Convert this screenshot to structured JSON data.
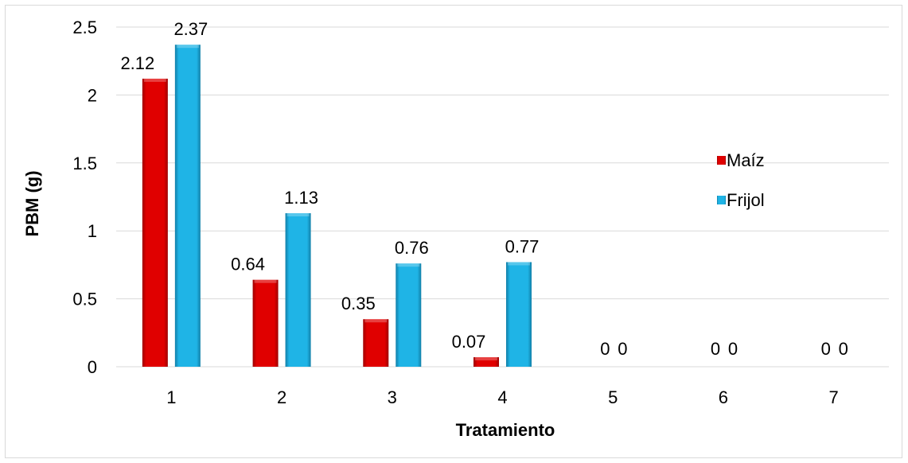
{
  "chart_data": {
    "type": "bar",
    "title": "",
    "xlabel": "Tratamiento",
    "ylabel": "PBM (g)",
    "categories": [
      "1",
      "2",
      "3",
      "4",
      "5",
      "6",
      "7"
    ],
    "ylim": [
      0,
      2.5
    ],
    "yticks": [
      "0",
      "0.5",
      "1",
      "1.5",
      "2",
      "2.5"
    ],
    "grid": true,
    "legend_position": "right",
    "series": [
      {
        "name": "Maíz",
        "color": "#e00000",
        "values": [
          2.12,
          0.64,
          0.35,
          0.07,
          0,
          0,
          0
        ],
        "labels": [
          "2.12",
          "0.64",
          "0.35",
          "0.07",
          "0",
          "0",
          "0"
        ]
      },
      {
        "name": "Frijol",
        "color": "#1fb4e6",
        "values": [
          2.37,
          1.13,
          0.76,
          0.77,
          0,
          0,
          0
        ],
        "labels": [
          "2.37",
          "1.13",
          "0.76",
          "0.77",
          "0",
          "0",
          "0"
        ]
      }
    ]
  }
}
